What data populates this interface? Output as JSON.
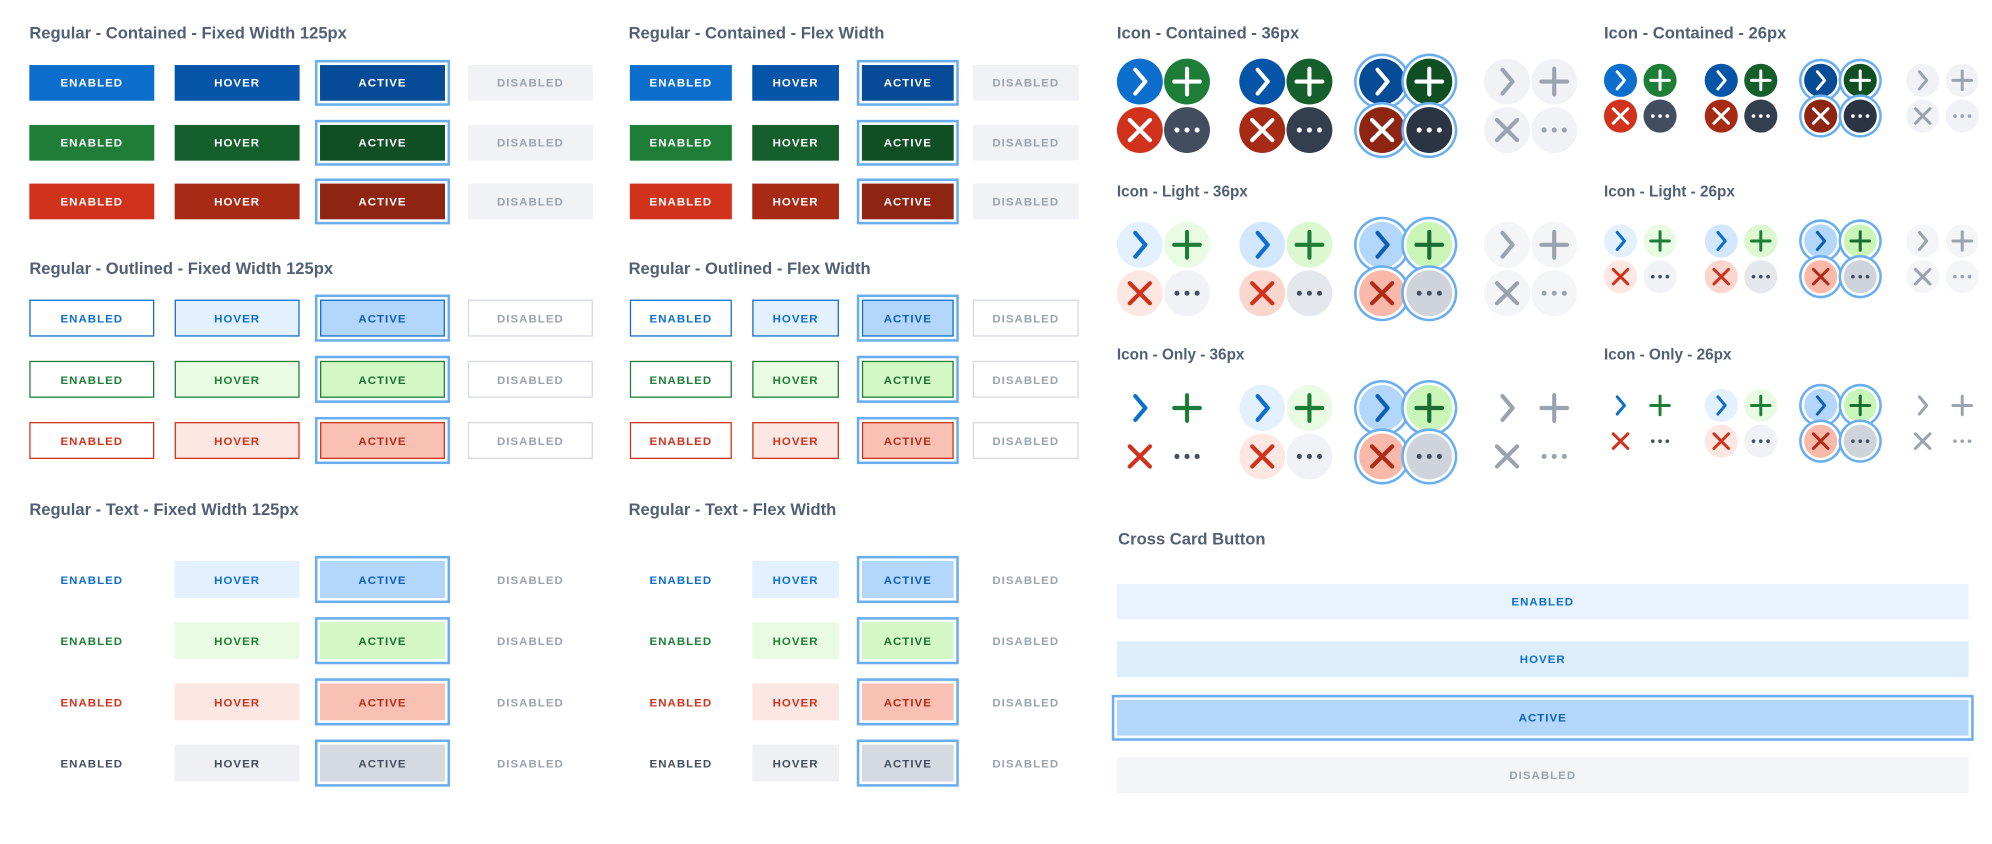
{
  "titles": {
    "contained_fixed": "Regular - Contained - Fixed Width 125px",
    "contained_flex": "Regular - Contained - Flex Width",
    "outlined_fixed": "Regular - Outlined - Fixed Width 125px",
    "outlined_flex": "Regular - Outlined - Flex Width",
    "text_fixed": "Regular - Text - Fixed Width 125px",
    "text_flex": "Regular - Text - Flex Width",
    "icon_contained_36": "Icon - Contained - 36px",
    "icon_contained_26": "Icon - Contained - 26px",
    "icon_light_36": "Icon - Light - 36px",
    "icon_light_26": "Icon - Light - 26px",
    "icon_only_36": "Icon - Only - 36px",
    "icon_only_26": "Icon - Only - 26px",
    "cross_card": "Cross Card Button"
  },
  "states": {
    "enabled": "ENABLED",
    "hover": "HOVER",
    "active": "ACTIVE",
    "disabled": "DISABLED"
  },
  "color_variants": [
    "blue",
    "green",
    "red",
    "neutral"
  ],
  "icons": [
    "chevron-right-icon",
    "plus-icon",
    "close-icon",
    "more-horizontal-icon"
  ],
  "colors": {
    "blue_enabled": "#0c6fce",
    "blue_hover": "#0655a8",
    "blue_active": "#064b95",
    "green_enabled": "#1e7e37",
    "green_hover": "#145f2b",
    "green_active": "#0f4f23",
    "red_enabled": "#d0321b",
    "red_hover": "#a72a15",
    "red_active": "#8e2412",
    "neutral_dark": "#424e5f",
    "focus_ring": "#6aaef2",
    "disabled_bg": "#f0f2f5",
    "disabled_text": "#9aa3af"
  }
}
